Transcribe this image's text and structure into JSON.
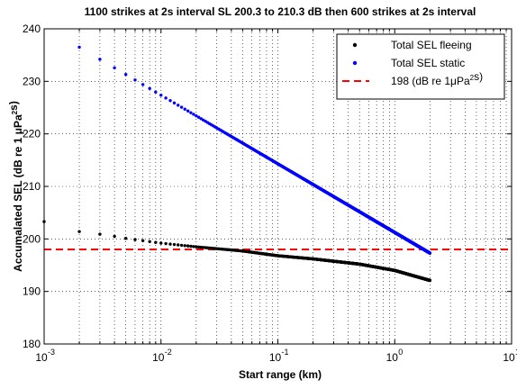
{
  "chart_data": {
    "type": "scatter",
    "title": "1100 strikes at 2s interval  SL 200.3 to 210.3 dB then 600 strikes at 2s interval",
    "xlabel": "Start range (km)",
    "ylabel": "Accumalated SEL (dB re 1 μPa²s)",
    "xscale": "log",
    "xlim": [
      0.001,
      10
    ],
    "ylim": [
      180,
      240
    ],
    "grid": "dotted, major and minor on x; major on y",
    "x_tick_labels": [
      {
        "base": "10",
        "exp": "-3"
      },
      {
        "base": "10",
        "exp": "-2"
      },
      {
        "base": "10",
        "exp": "-1"
      },
      {
        "base": "10",
        "exp": "0"
      },
      {
        "base": "10",
        "exp": "1"
      }
    ],
    "y_tick_labels": [
      "180",
      "190",
      "200",
      "210",
      "220",
      "230",
      "240"
    ],
    "legend_position": "top-right",
    "legend": [
      {
        "label": "Total SEL fleeing",
        "color": "#000000",
        "marker": "dot"
      },
      {
        "label": "Total SEL static",
        "color": "#0000ff",
        "marker": "dot"
      },
      {
        "label": "198 (dB re 1μPa²s)",
        "color": "#ff0000",
        "marker": "dashed-line"
      }
    ],
    "series": [
      {
        "name": "Total SEL fleeing",
        "color": "#000000",
        "x_range_km": [
          0.001,
          2.0
        ],
        "x_step_km": 0.001,
        "y_keypoints": [
          [
            0.001,
            203.3
          ],
          [
            0.002,
            201.4
          ],
          [
            0.003,
            200.9
          ],
          [
            0.004,
            200.5
          ],
          [
            0.005,
            200.1
          ],
          [
            0.01,
            199.2
          ],
          [
            0.02,
            198.5
          ],
          [
            0.05,
            197.7
          ],
          [
            0.1,
            196.8
          ],
          [
            0.2,
            196.2
          ],
          [
            0.5,
            195.2
          ],
          [
            1.0,
            194.0
          ],
          [
            2.0,
            192.1
          ]
        ]
      },
      {
        "name": "Total SEL static",
        "color": "#0000ff",
        "x_range_km": [
          0.002,
          2.0
        ],
        "x_step_km": 0.001,
        "y_keypoints": [
          [
            0.002,
            236.5
          ],
          [
            2.0,
            197.3
          ]
        ]
      }
    ],
    "reference_line": {
      "name": "198 (dB re 1μPa²s)",
      "y": 198,
      "color": "#ff0000",
      "style": "dashed"
    }
  }
}
